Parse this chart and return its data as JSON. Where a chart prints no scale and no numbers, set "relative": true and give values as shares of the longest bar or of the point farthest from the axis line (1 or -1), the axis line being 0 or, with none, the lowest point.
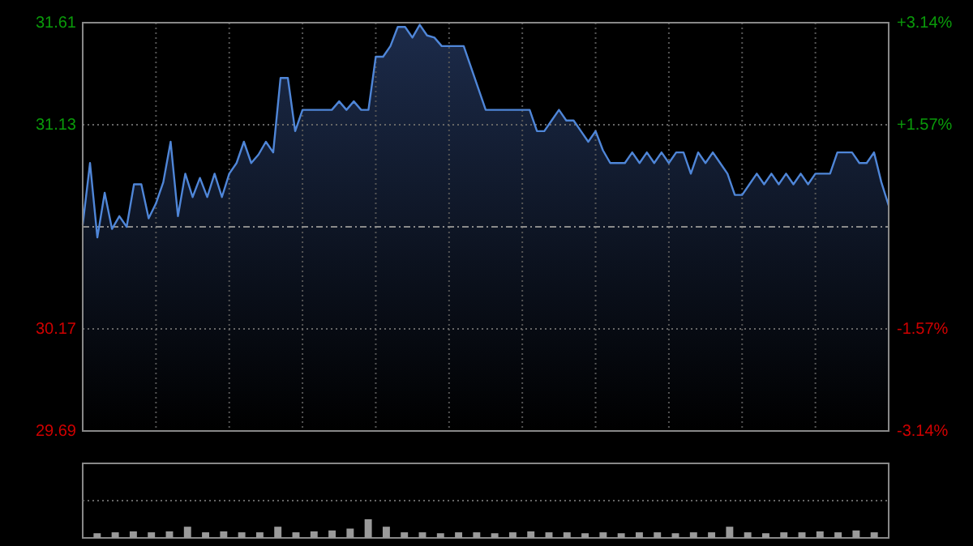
{
  "chart_data": [
    {
      "type": "area",
      "categories": [
        null,
        null,
        null,
        null,
        null,
        null,
        null,
        null,
        null,
        null,
        null,
        null,
        null,
        null,
        null,
        null,
        null,
        null,
        null,
        null,
        null,
        null,
        null,
        null,
        null,
        null,
        null,
        null,
        null,
        null,
        null,
        null,
        null,
        null,
        null,
        null,
        null,
        null,
        null,
        null,
        null,
        null,
        null,
        null,
        null,
        null,
        null,
        null,
        null,
        null,
        null,
        null,
        null,
        null,
        null,
        null,
        null,
        null,
        null,
        null,
        null,
        null,
        null,
        null,
        null,
        null,
        null,
        null,
        null,
        null,
        null,
        null,
        null,
        null,
        null,
        null,
        null,
        null,
        null,
        null,
        null,
        null,
        null,
        null,
        null,
        null,
        null,
        null,
        null,
        null,
        null,
        null,
        null,
        null,
        null,
        null,
        null,
        null,
        null,
        null,
        null,
        null,
        null,
        null,
        null,
        null,
        null,
        null,
        null,
        null,
        null
      ],
      "series": [
        {
          "color": "#4f86d8",
          "values": [
            30.66,
            30.95,
            30.6,
            30.81,
            30.64,
            30.7,
            30.65,
            30.85,
            30.85,
            30.69,
            30.76,
            30.86,
            31.05,
            30.7,
            30.9,
            30.79,
            30.88,
            30.79,
            30.9,
            30.79,
            30.9,
            30.95,
            31.05,
            30.95,
            30.99,
            31.05,
            31.0,
            31.35,
            31.35,
            31.1,
            31.2,
            31.2,
            31.2,
            31.2,
            31.2,
            31.24,
            31.2,
            31.24,
            31.2,
            31.2,
            31.45,
            31.45,
            31.5,
            31.59,
            31.59,
            31.54,
            31.6,
            31.55,
            31.54,
            31.5,
            31.5,
            31.5,
            31.5,
            31.4,
            31.3,
            31.2,
            31.2,
            31.2,
            31.2,
            31.2,
            31.2,
            31.2,
            31.1,
            31.1,
            31.15,
            31.2,
            31.15,
            31.15,
            31.1,
            31.05,
            31.1,
            31.01,
            30.95,
            30.95,
            30.95,
            31.0,
            30.95,
            31.0,
            30.95,
            31.0,
            30.95,
            31.0,
            31.0,
            30.9,
            31.0,
            30.95,
            31.0,
            30.95,
            30.9,
            30.8,
            30.8,
            30.85,
            30.9,
            30.85,
            30.9,
            30.85,
            30.9,
            30.85,
            30.9,
            30.85,
            30.9,
            30.9,
            30.9,
            31.0,
            31.0,
            31.0,
            30.95,
            30.95,
            31.0,
            30.86,
            30.75
          ]
        }
      ],
      "ylim": [
        29.69,
        31.61
      ],
      "yticks": [
        29.69,
        30.17,
        31.13,
        31.61
      ],
      "y2lim": [
        -3.14,
        3.14
      ],
      "y2ticks": [
        {
          "value": -3.14,
          "label": "-3.14%"
        },
        {
          "value": -1.57,
          "label": "-1.57%"
        },
        {
          "value": 1.57,
          "label": "+1.57%"
        },
        {
          "value": 3.14,
          "label": "+3.14%"
        }
      ],
      "ref_lines": [
        {
          "axis": "y",
          "value": 30.65,
          "color": "#8a8a8a",
          "line_style": "dashed"
        }
      ],
      "grid": true
    },
    {
      "type": "bar",
      "relative": true,
      "color": "#9a9a9a",
      "categories": [
        null,
        null,
        null,
        null,
        null,
        null,
        null,
        null,
        null,
        null,
        null,
        null,
        null,
        null,
        null,
        null,
        null,
        null,
        null,
        null,
        null,
        null,
        null,
        null,
        null,
        null,
        null,
        null,
        null,
        null,
        null,
        null,
        null,
        null,
        null,
        null,
        null,
        null,
        null,
        null,
        null,
        null,
        null,
        null
      ],
      "values": [
        0.25,
        0.3,
        0.35,
        0.3,
        0.35,
        0.6,
        0.3,
        0.35,
        0.3,
        0.3,
        0.6,
        0.3,
        0.35,
        0.4,
        0.5,
        1,
        0.6,
        0.3,
        0.3,
        0.25,
        0.3,
        0.3,
        0.25,
        0.3,
        0.35,
        0.3,
        0.3,
        0.25,
        0.3,
        0.25,
        0.3,
        0.3,
        0.25,
        0.3,
        0.3,
        0.6,
        0.3,
        0.25,
        0.3,
        0.3,
        0.35,
        0.3,
        0.4,
        0.3
      ]
    }
  ]
}
